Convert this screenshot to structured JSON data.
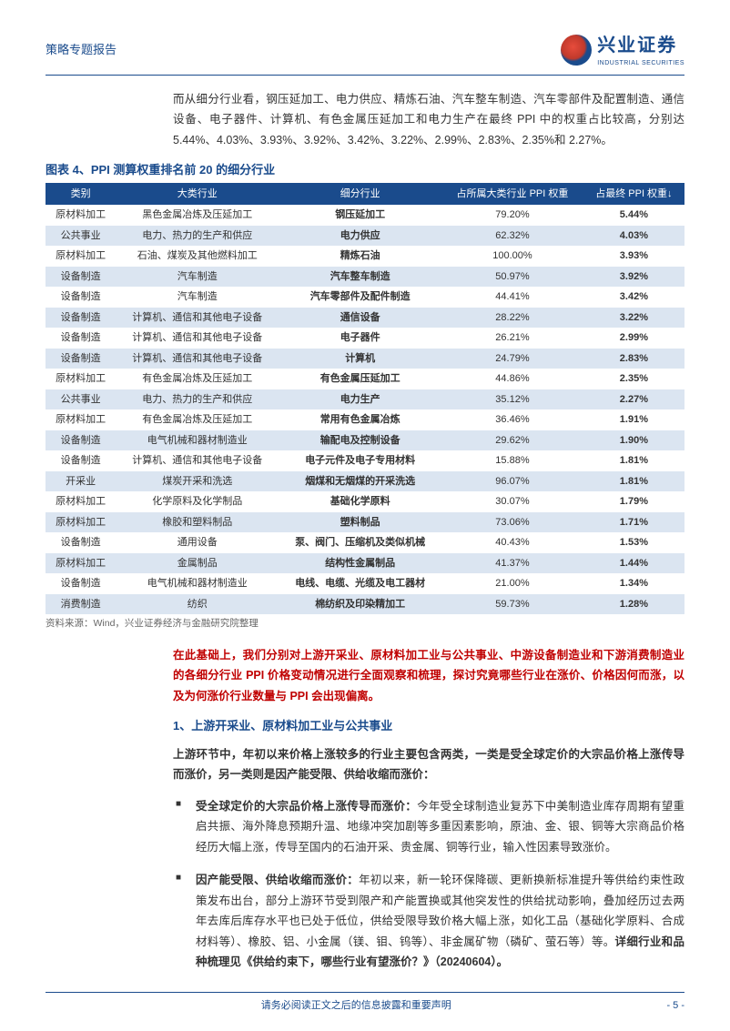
{
  "header": {
    "report_type": "策略专题报告",
    "company_cn": "兴业证券",
    "company_en": "INDUSTRIAL SECURITIES"
  },
  "intro_para": "而从细分行业看，钢压延加工、电力供应、精炼石油、汽车整车制造、汽车零部件及配置制造、通信设备、电子器件、计算机、有色金属压延加工和电力生产在最终 PPI 中的权重占比较高，分别达 5.44%、4.03%、3.93%、3.92%、3.42%、3.22%、2.99%、2.83%、2.35%和 2.27%。",
  "figure_title": "图表 4、PPI 测算权重排名前 20 的细分行业",
  "table": {
    "columns": [
      "类别",
      "大类行业",
      "细分行业",
      "占所属大类行业 PPI 权重",
      "占最终 PPI 权重↓"
    ],
    "header_bg": "#1a4b8c",
    "header_fg": "#ffffff",
    "row_alt_bg": "#dbe5f1",
    "rows": [
      [
        "原材料加工",
        "黑色金属冶炼及压延加工",
        "钢压延加工",
        "79.20%",
        "5.44%"
      ],
      [
        "公共事业",
        "电力、热力的生产和供应",
        "电力供应",
        "62.32%",
        "4.03%"
      ],
      [
        "原材料加工",
        "石油、煤炭及其他燃料加工",
        "精炼石油",
        "100.00%",
        "3.93%"
      ],
      [
        "设备制造",
        "汽车制造",
        "汽车整车制造",
        "50.97%",
        "3.92%"
      ],
      [
        "设备制造",
        "汽车制造",
        "汽车零部件及配件制造",
        "44.41%",
        "3.42%"
      ],
      [
        "设备制造",
        "计算机、通信和其他电子设备",
        "通信设备",
        "28.22%",
        "3.22%"
      ],
      [
        "设备制造",
        "计算机、通信和其他电子设备",
        "电子器件",
        "26.21%",
        "2.99%"
      ],
      [
        "设备制造",
        "计算机、通信和其他电子设备",
        "计算机",
        "24.79%",
        "2.83%"
      ],
      [
        "原材料加工",
        "有色金属冶炼及压延加工",
        "有色金属压延加工",
        "44.86%",
        "2.35%"
      ],
      [
        "公共事业",
        "电力、热力的生产和供应",
        "电力生产",
        "35.12%",
        "2.27%"
      ],
      [
        "原材料加工",
        "有色金属冶炼及压延加工",
        "常用有色金属冶炼",
        "36.46%",
        "1.91%"
      ],
      [
        "设备制造",
        "电气机械和器材制造业",
        "输配电及控制设备",
        "29.62%",
        "1.90%"
      ],
      [
        "设备制造",
        "计算机、通信和其他电子设备",
        "电子元件及电子专用材料",
        "15.88%",
        "1.81%"
      ],
      [
        "开采业",
        "煤炭开采和洗选",
        "烟煤和无烟煤的开采洗选",
        "96.07%",
        "1.81%"
      ],
      [
        "原材料加工",
        "化学原料及化学制品",
        "基础化学原料",
        "30.07%",
        "1.79%"
      ],
      [
        "原材料加工",
        "橡胶和塑料制品",
        "塑料制品",
        "73.06%",
        "1.71%"
      ],
      [
        "设备制造",
        "通用设备",
        "泵、阀门、压缩机及类似机械",
        "40.43%",
        "1.53%"
      ],
      [
        "原材料加工",
        "金属制品",
        "结构性金属制品",
        "41.37%",
        "1.44%"
      ],
      [
        "设备制造",
        "电气机械和器材制造业",
        "电线、电缆、光缆及电工器材",
        "21.00%",
        "1.34%"
      ],
      [
        "消费制造",
        "纺织",
        "棉纺织及印染精加工",
        "59.73%",
        "1.28%"
      ]
    ]
  },
  "source": "资料来源：Wind，兴业证券经济与金融研究院整理",
  "red_para": "在此基础上，我们分别对上游开采业、原材料加工业与公共事业、中游设备制造业和下游消费制造业的各细分行业 PPI 价格变动情况进行全面观察和梳理，探讨究竟哪些行业在涨价、价格因何而涨，以及为何涨价行业数量与 PPI 会出现偏离。",
  "section_heading": "1、上游开采业、原材料加工业与公共事业",
  "bold_para": "上游环节中，年初以来价格上涨较多的行业主要包含两类，一类是受全球定价的大宗品价格上涨传导而涨价，另一类则是因产能受限、供给收缩而涨价：",
  "bullets": [
    {
      "lead": "受全球定价的大宗品价格上涨传导而涨价：",
      "body": "今年受全球制造业复苏下中美制造业库存周期有望重启共振、海外降息预期升温、地缘冲突加剧等多重因素影响，原油、金、银、铜等大宗商品价格经历大幅上涨，传导至国内的石油开采、贵金属、铜等行业，输入性因素导致涨价。"
    },
    {
      "lead": "因产能受限、供给收缩而涨价：",
      "body": "年初以来，新一轮环保降碳、更新换新标准提升等供给约束性政策发布出台，部分上游环节受到限产和产能置换或其他突发性的供给扰动影响，叠加经历过去两年去库后库存水平也已处于低位，供给受限导致价格大幅上涨，如化工品（基础化学原料、合成材料等）、橡胶、铝、小金属（镁、钼、钨等）、非金属矿物（磷矿、萤石等）等。",
      "ref": "详细行业和品种梳理见《供给约束下，哪些行业有望涨价？》（20240604）。"
    }
  ],
  "footer": {
    "disclaimer": "请务必阅读正文之后的信息披露和重要声明",
    "page": "- 5 -"
  },
  "colors": {
    "brand_blue": "#1a4b8c",
    "brand_red": "#c00000",
    "text": "#333333"
  }
}
